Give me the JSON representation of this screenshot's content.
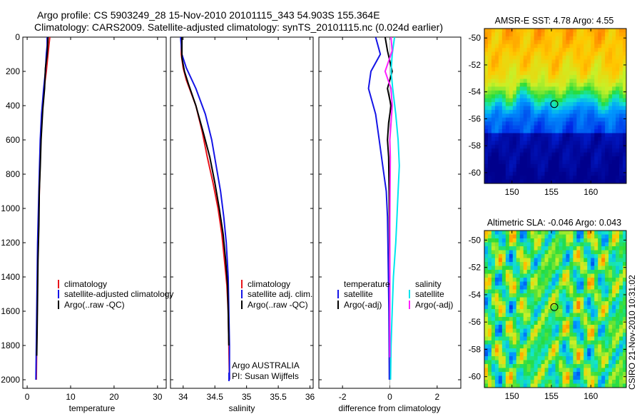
{
  "header": {
    "line1": "Argo profile: CS 5903249_28 15-Nov-2010 20101115_343 54.903S 155.364E",
    "line2": "Climatology: CARS2009. Satellite-adjusted climatology: synTS_20101115.nc (0.024d earlier)"
  },
  "credit": "CSIRO 21-Nov-2010 10:31:02",
  "colors": {
    "climatology": "#e8141b",
    "satellite": "#1414e6",
    "argo": "#000000",
    "sal_satellite": "#00e5ee",
    "sal_argo": "#ff22ff"
  },
  "chart_data": [
    {
      "type": "line",
      "title": "",
      "xlabel": "temperature",
      "ylabel": "",
      "xlim": [
        -1,
        32
      ],
      "ylim": [
        2050,
        0
      ],
      "xticks": [
        0,
        10,
        20,
        30
      ],
      "yticks": [
        0,
        200,
        400,
        600,
        800,
        1000,
        1200,
        1400,
        1600,
        1800,
        2000
      ],
      "legend": [
        "climatology",
        "satellite-adjusted climatology",
        "Argo(..raw -QC)"
      ],
      "series": [
        {
          "name": "climatology",
          "x": [
            5.2,
            5.0,
            4.8,
            4.4,
            3.9,
            3.4,
            3.1,
            2.9,
            2.7,
            2.5,
            2.4,
            2.3,
            2.2,
            2.1
          ],
          "y": [
            0,
            50,
            100,
            200,
            300,
            450,
            600,
            800,
            1000,
            1200,
            1400,
            1600,
            1800,
            2000
          ]
        },
        {
          "name": "satellite-adjusted climatology",
          "x": [
            4.6,
            4.6,
            4.4,
            4.2,
            3.8,
            3.3,
            3.0,
            2.8,
            2.6,
            2.4,
            2.3,
            2.2,
            2.1,
            2.0
          ],
          "y": [
            0,
            50,
            100,
            200,
            300,
            450,
            600,
            800,
            1000,
            1200,
            1400,
            1600,
            1800,
            2000
          ]
        },
        {
          "name": "Argo(..raw -QC)",
          "x": [
            4.8,
            4.6,
            4.2,
            4.0,
            3.6,
            3.2,
            3.0,
            2.8,
            2.7,
            2.5,
            2.4,
            2.3,
            2.2
          ],
          "y": [
            0,
            100,
            180,
            300,
            420,
            600,
            760,
            900,
            1100,
            1300,
            1500,
            1700,
            1860
          ]
        }
      ]
    },
    {
      "type": "line",
      "title": "",
      "xlabel": "salinity",
      "ylabel": "",
      "xlim": [
        33.8,
        36.05
      ],
      "ylim": [
        2050,
        0
      ],
      "xticks": [
        34,
        34.5,
        35,
        35.5,
        36
      ],
      "yticks": [
        0,
        200,
        400,
        600,
        800,
        1000,
        1200,
        1400,
        1600,
        1800,
        2000
      ],
      "legend": [
        "climatology",
        "satellite adj. clim.",
        "Argo(..raw -QC)"
      ],
      "annotation": [
        "Argo AUSTRALIA",
        "PI: Susan Wijffels"
      ],
      "series": [
        {
          "name": "climatology",
          "x": [
            33.97,
            33.97,
            34.0,
            34.05,
            34.2,
            34.3,
            34.38,
            34.47,
            34.55,
            34.61,
            34.65,
            34.69,
            34.71,
            34.72,
            34.73
          ],
          "y": [
            0,
            100,
            180,
            250,
            400,
            550,
            700,
            850,
            1000,
            1150,
            1300,
            1450,
            1600,
            1800,
            2000
          ]
        },
        {
          "name": "satellite adj. clim.",
          "x": [
            33.96,
            33.98,
            34.05,
            34.2,
            34.35,
            34.45,
            34.52,
            34.59,
            34.64,
            34.68,
            34.71,
            34.72,
            34.73,
            34.73
          ],
          "y": [
            0,
            100,
            180,
            300,
            450,
            600,
            750,
            900,
            1050,
            1200,
            1400,
            1600,
            1800,
            2000
          ]
        },
        {
          "name": "Argo(..raw -QC)",
          "x": [
            33.98,
            33.98,
            34.02,
            34.08,
            34.2,
            34.32,
            34.42,
            34.5,
            34.57,
            34.63,
            34.67,
            34.7,
            34.71,
            34.72
          ],
          "y": [
            0,
            120,
            200,
            270,
            400,
            560,
            700,
            850,
            1000,
            1150,
            1300,
            1450,
            1600,
            1800
          ]
        }
      ]
    },
    {
      "type": "line",
      "title": "",
      "xlabel": "difference from climatology",
      "ylabel": "",
      "xlim": [
        -3,
        3
      ],
      "ylim": [
        2050,
        0
      ],
      "xticks": [
        -2,
        0,
        2
      ],
      "yticks": [
        0,
        200,
        400,
        600,
        800,
        1000,
        1200,
        1400,
        1600,
        1800,
        2000
      ],
      "legend": [
        "temperature",
        "satellite",
        "Argo(-adj)",
        "salinity",
        "satellite",
        "Argo(-adj)"
      ],
      "series": [
        {
          "name": "temperature satellite",
          "x": [
            -0.6,
            -0.4,
            -0.8,
            -0.9,
            -0.6,
            -0.45,
            -0.3,
            -0.15,
            -0.1,
            -0.08,
            -0.06,
            -0.04,
            -0.03,
            -0.02
          ],
          "y": [
            0,
            100,
            200,
            300,
            450,
            600,
            750,
            900,
            1050,
            1200,
            1400,
            1600,
            1800,
            2000
          ]
        },
        {
          "name": "temperature Argo(-adj)",
          "x": [
            -0.2,
            -0.1,
            0.1,
            -0.1,
            0.05,
            -0.05,
            -0.1,
            -0.05,
            -0.03,
            -0.02,
            0.0,
            0.0,
            0.01
          ],
          "y": [
            0,
            80,
            200,
            300,
            400,
            500,
            600,
            700,
            900,
            1100,
            1400,
            1700,
            1870
          ]
        },
        {
          "name": "salinity satellite",
          "x": [
            0.2,
            0.1,
            0.05,
            0.12,
            0.25,
            0.35,
            0.4,
            0.35,
            0.3,
            0.25,
            0.15,
            0.1,
            0.05,
            0.03
          ],
          "y": [
            0,
            100,
            200,
            300,
            450,
            600,
            750,
            900,
            1050,
            1200,
            1400,
            1600,
            1800,
            2000
          ]
        },
        {
          "name": "salinity Argo(-adj)",
          "x": [
            0.05,
            0.1,
            -0.2,
            0.05,
            0.1,
            0.05,
            0.0,
            0.02,
            0.01,
            0.0,
            0.0,
            0.0,
            0.0
          ],
          "y": [
            0,
            80,
            200,
            300,
            400,
            500,
            600,
            700,
            900,
            1100,
            1400,
            1700,
            1870
          ]
        }
      ]
    },
    {
      "type": "heatmap",
      "title": "AMSR-E SST: 4.78 Argo: 4.55",
      "xlim": [
        146.5,
        164.5
      ],
      "ylim": [
        -60.8,
        -49.3
      ],
      "xticks": [
        150,
        155,
        160
      ],
      "yticks": [
        -50,
        -52,
        -54,
        -56,
        -58,
        -60
      ],
      "argo_position": [
        155.364,
        -54.903
      ]
    },
    {
      "type": "heatmap",
      "title": "Altimetric SLA: -0.046 Argo: 0.043",
      "xlim": [
        146.5,
        164.5
      ],
      "ylim": [
        -60.8,
        -49.3
      ],
      "xticks": [
        150,
        155,
        160
      ],
      "yticks": [
        -50,
        -52,
        -54,
        -56,
        -58,
        -60
      ],
      "argo_position": [
        155.364,
        -54.903
      ]
    }
  ]
}
